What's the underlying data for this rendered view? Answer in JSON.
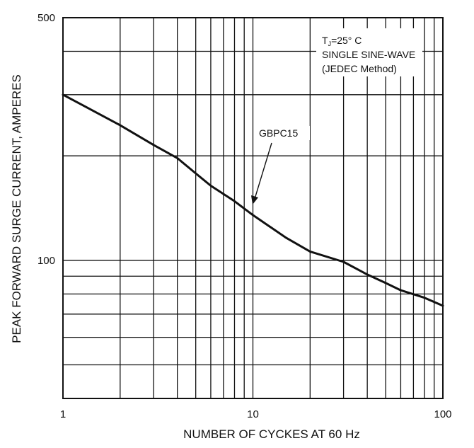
{
  "chart_data": {
    "type": "line",
    "xlabel": "NUMBER OF CYCKES AT 60 Hz",
    "ylabel": "PEAK FORWARD SURGE CURRENT, AMPERES",
    "x_scale": "log",
    "y_scale": "log",
    "xlim": [
      1,
      100
    ],
    "ylim": [
      40,
      500
    ],
    "x_tick_labels": [
      {
        "value": 1,
        "label": "1"
      },
      {
        "value": 10,
        "label": "10"
      },
      {
        "value": 100,
        "label": "100"
      }
    ],
    "y_tick_labels": [
      {
        "value": 100,
        "label": "100"
      },
      {
        "value": 500,
        "label": "500"
      }
    ],
    "x_gridlines": [
      1,
      2,
      3,
      4,
      5,
      6,
      7,
      8,
      9,
      10,
      20,
      30,
      40,
      50,
      60,
      70,
      80,
      90,
      100
    ],
    "y_gridlines": [
      40,
      50,
      60,
      70,
      80,
      90,
      100,
      200,
      300,
      400,
      500
    ],
    "grid": true,
    "series": [
      {
        "name": "GBPC15",
        "x": [
          1,
          2,
          3,
          4,
          5,
          6,
          8,
          10,
          15,
          20,
          30,
          40,
          50,
          60,
          80,
          100
        ],
        "y": [
          300,
          245,
          215,
          197,
          178,
          164,
          148,
          135,
          116,
          106,
          99,
          91,
          86,
          82,
          78,
          74
        ]
      }
    ],
    "annotations": {
      "series_label": "GBPC15",
      "conditions": {
        "tj_main": "T",
        "tj_sub": "J",
        "tj_rest": "=25° C",
        "line2": "SINGLE SINE-WAVE",
        "line3": "(JEDEC Method)"
      }
    },
    "colors": {
      "line": "#111111",
      "grid": "#111111",
      "background": "#ffffff"
    }
  }
}
